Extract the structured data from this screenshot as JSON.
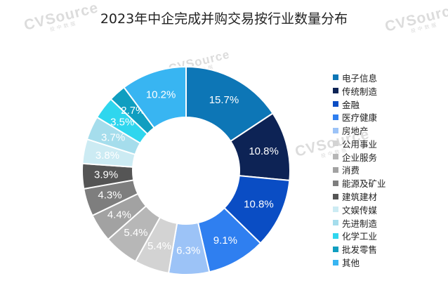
{
  "watermark": {
    "text": "CVSource",
    "sub": "投中数据"
  },
  "chart_data": {
    "type": "pie",
    "style": "donut",
    "title": "2023年中企完成并购交易按行业数量分布",
    "legend_position": "right",
    "categories": [
      "电子信息",
      "传统制造",
      "金融",
      "医疗健康",
      "房地产",
      "公用事业",
      "企业服务",
      "消费",
      "能源及矿业",
      "建筑建材",
      "文娱传媒",
      "先进制造",
      "化学工业",
      "批发零售",
      "其他"
    ],
    "values": [
      15.7,
      10.8,
      10.8,
      9.1,
      6.3,
      5.4,
      5.4,
      4.4,
      4.3,
      3.9,
      3.8,
      3.7,
      3.5,
      2.7,
      10.2
    ],
    "labels": [
      "15.7%",
      "10.8%",
      "10.8%",
      "9.1%",
      "6.3%",
      "5.4%",
      "5.4%",
      "4.4%",
      "4.3%",
      "3.9%",
      "3.8%",
      "3.7%",
      "3.5%",
      "2.7%",
      "10.2%"
    ],
    "colors": [
      "#0D76B6",
      "#0D2355",
      "#0A4DC4",
      "#2F7FF0",
      "#9CC3F7",
      "#D3D3D3",
      "#B7B7B7",
      "#A2A2A2",
      "#7E7E7E",
      "#555555",
      "#CCEBF3",
      "#A5DDEC",
      "#2FD6EE",
      "#109EC0",
      "#38B5F2"
    ],
    "label_colors": [
      "#ffffff",
      "#ffffff",
      "#ffffff",
      "#ffffff",
      "#ffffff",
      "#ffffff",
      "#ffffff",
      "#ffffff",
      "#ffffff",
      "#ffffff",
      "#ffffff",
      "#ffffff",
      "#ffffff",
      "#ffffff",
      "#ffffff"
    ]
  }
}
